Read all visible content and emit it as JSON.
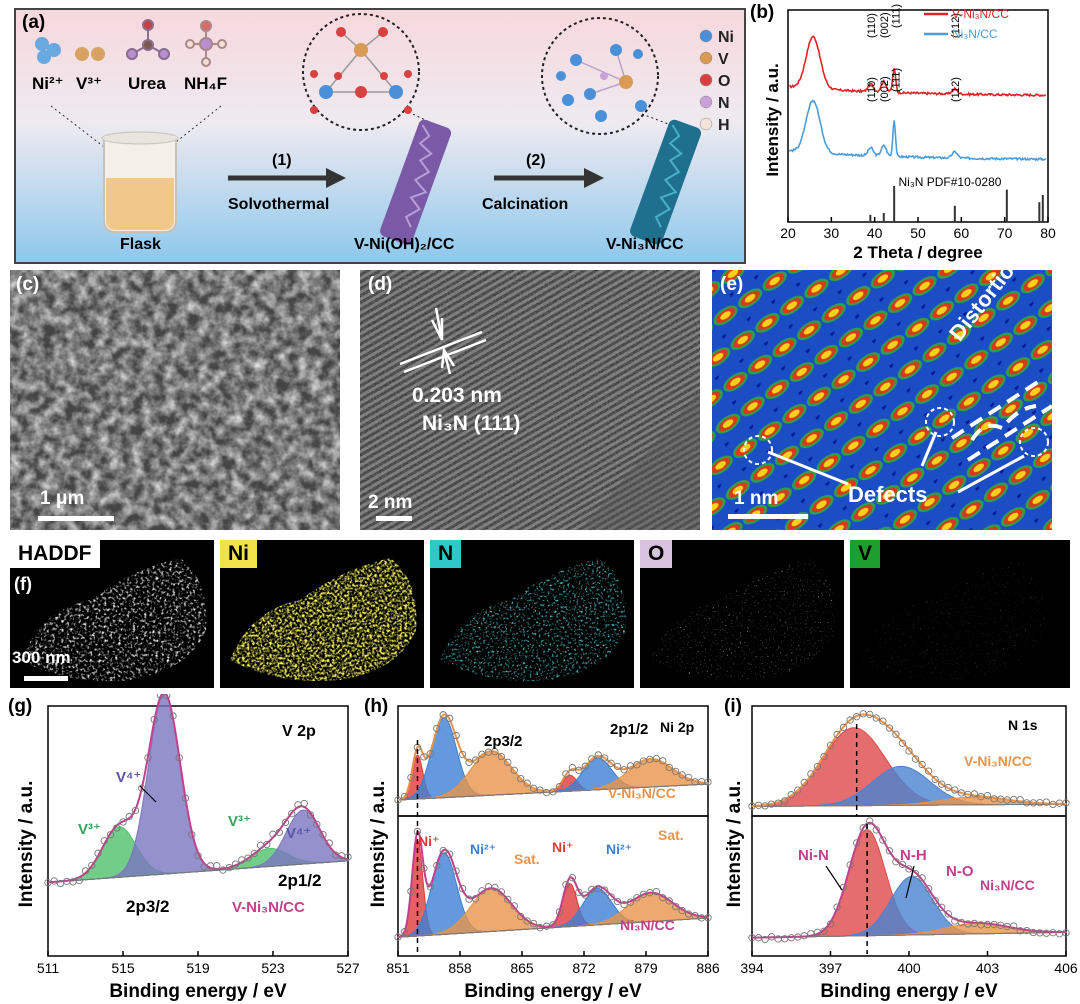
{
  "panel_a": {
    "label": "(a)",
    "reagents": [
      "Ni²⁺",
      "V³⁺",
      "Urea",
      "NH₄F"
    ],
    "flask": "Flask",
    "step1": {
      "num": "(1)",
      "name": "Solvothermal"
    },
    "step2": {
      "num": "(2)",
      "name": "Calcination"
    },
    "product1": "V-Ni(OH)₂/CC",
    "product2": "V-Ni₃N/CC",
    "legend": [
      {
        "el": "Ni",
        "color": "#4a90d9"
      },
      {
        "el": "V",
        "color": "#d99a55"
      },
      {
        "el": "O",
        "color": "#d94040"
      },
      {
        "el": "N",
        "color": "#c9a0d9"
      },
      {
        "el": "H",
        "color": "#f3e2d6"
      }
    ]
  },
  "panel_b": {
    "label": "(b)",
    "legend": [
      "V-Ni₃N/CC",
      "Ni₃N/CC"
    ],
    "peaks": [
      "(110)",
      "(002)",
      "(111)",
      "(112)"
    ],
    "ref": "Ni₃N PDF#10-0280",
    "xlabel": "2 Theta / degree",
    "ylabel": "Intensity / a.u.",
    "xticks": [
      "20",
      "30",
      "40",
      "50",
      "60",
      "70",
      "80"
    ]
  },
  "panel_c": {
    "label": "(c)",
    "scale": "1 μm"
  },
  "panel_d": {
    "label": "(d)",
    "spacing": "0.203 nm",
    "plane": "Ni₃N (111)",
    "scale": "2 nm"
  },
  "panel_e": {
    "label": "(e)",
    "distortion": "Distortion",
    "defects": "Defects",
    "scale": "1 nm"
  },
  "panel_f": {
    "label": "(f)",
    "maps": [
      "HADDF",
      "Ni",
      "N",
      "O",
      "V"
    ],
    "scale": "300 nm"
  },
  "panel_g": {
    "label": "(g)",
    "title": "V 2p",
    "sample": "V-Ni₃N/CC",
    "peaks": [
      "V⁴⁺",
      "V³⁺",
      "V³⁺",
      "V⁴⁺"
    ],
    "orbitals": [
      "2p3/2",
      "2p1/2"
    ],
    "xticks": [
      "511",
      "515",
      "519",
      "523",
      "527"
    ],
    "xlabel": "Binding energy / eV",
    "ylabel": "Intensity / a.u."
  },
  "panel_h": {
    "label": "(h)",
    "title": "Ni 2p",
    "samples": [
      "V-Ni₃N/CC",
      "Ni₃N/CC"
    ],
    "orbitals": [
      "2p3/2",
      "2p1/2"
    ],
    "peaks": [
      "Ni⁺",
      "Ni²⁺",
      "Sat.",
      "Ni⁺",
      "Ni²⁺",
      "Sat."
    ],
    "xticks": [
      "851",
      "858",
      "865",
      "872",
      "879",
      "886"
    ],
    "xlabel": "Binding energy / eV",
    "ylabel": "Intensity / a.u."
  },
  "panel_i": {
    "label": "(i)",
    "title": "N 1s",
    "samples": [
      "V-Ni₃N/CC",
      "Ni₃N/CC"
    ],
    "peaks": [
      "Ni-N",
      "N-H",
      "N-O"
    ],
    "xticks": [
      "394",
      "397",
      "400",
      "403",
      "406"
    ],
    "xlabel": "Binding energy / eV",
    "ylabel": "Intensity / a.u."
  },
  "chart_data": [
    {
      "type": "line",
      "title": "(b)",
      "xlabel": "2 Theta / degree",
      "ylabel": "Intensity / a.u.",
      "xlim": [
        20,
        80
      ],
      "series": [
        {
          "name": "V-Ni₃N/CC",
          "color": "#e02424",
          "peaks": [
            {
              "x": 25.8,
              "height": 1.0,
              "width": 1.6
            },
            {
              "x": 39.1,
              "height": 0.15,
              "width": 0.6
            },
            {
              "x": 42.1,
              "height": 0.2,
              "width": 0.6
            },
            {
              "x": 44.5,
              "height": 0.45,
              "width": 0.35
            },
            {
              "x": 58.5,
              "height": 0.1,
              "width": 0.6
            }
          ]
        },
        {
          "name": "Ni₃N/CC",
          "color": "#4a9ee0",
          "peaks": [
            {
              "x": 25.8,
              "height": 1.0,
              "width": 1.6
            },
            {
              "x": 39.1,
              "height": 0.15,
              "width": 0.6
            },
            {
              "x": 42.1,
              "height": 0.2,
              "width": 0.6
            },
            {
              "x": 44.5,
              "height": 0.7,
              "width": 0.3
            },
            {
              "x": 58.5,
              "height": 0.12,
              "width": 0.6
            }
          ]
        }
      ],
      "reference": {
        "name": "Ni₃N PDF#10-0280",
        "positions": [
          39.0,
          42.1,
          44.5,
          58.5,
          70.5,
          78.0,
          78.8
        ],
        "heights": [
          0.2,
          0.25,
          1.0,
          0.45,
          0.9,
          0.55,
          0.75
        ]
      }
    },
    {
      "type": "area",
      "title": "V 2p",
      "xlabel": "Binding energy / eV",
      "ylabel": "Intensity / a.u.",
      "xlim": [
        511,
        527
      ],
      "components": [
        {
          "label": "V³⁺",
          "center": 514.8,
          "height": 0.28,
          "width": 0.9,
          "color": "#4fc06b"
        },
        {
          "label": "V⁴⁺",
          "center": 517.2,
          "height": 1.0,
          "width": 0.85,
          "color": "#7a75c0"
        },
        {
          "label": "V³⁺",
          "center": 522.8,
          "height": 0.1,
          "width": 1.0,
          "color": "#4fc06b"
        },
        {
          "label": "V⁴⁺",
          "center": 524.6,
          "height": 0.3,
          "width": 0.9,
          "color": "#7a75c0"
        }
      ]
    },
    {
      "type": "area",
      "title": "Ni 2p",
      "xlabel": "Binding energy / eV",
      "ylabel": "Intensity / a.u.",
      "xlim": [
        851,
        886
      ],
      "series": [
        {
          "name": "V-Ni₃N/CC",
          "components": [
            {
              "label": "Ni⁺",
              "center": 853.2,
              "height": 0.55,
              "width": 0.6,
              "color": "#e03a3a"
            },
            {
              "label": "Ni²⁺",
              "center": 856.2,
              "height": 1.0,
              "width": 1.4,
              "color": "#3d7fd4"
            },
            {
              "label": "Sat.",
              "center": 861.5,
              "height": 0.55,
              "width": 2.3,
              "color": "#e8934a"
            },
            {
              "label": "Ni⁺",
              "center": 870.4,
              "height": 0.2,
              "width": 0.8,
              "color": "#e03a3a"
            },
            {
              "label": "Ni²⁺",
              "center": 873.5,
              "height": 0.4,
              "width": 1.6,
              "color": "#3d7fd4"
            },
            {
              "label": "Sat.",
              "center": 879.5,
              "height": 0.35,
              "width": 2.5,
              "color": "#e8934a"
            }
          ]
        },
        {
          "name": "Ni₃N/CC",
          "components": [
            {
              "label": "Ni⁺",
              "center": 853.2,
              "height": 1.0,
              "width": 0.6,
              "color": "#e03a3a"
            },
            {
              "label": "Ni²⁺",
              "center": 856.2,
              "height": 0.85,
              "width": 1.4,
              "color": "#3d7fd4"
            },
            {
              "label": "Sat.",
              "center": 861.5,
              "height": 0.45,
              "width": 2.3,
              "color": "#e8934a"
            },
            {
              "label": "Ni⁺",
              "center": 870.4,
              "height": 0.45,
              "width": 0.8,
              "color": "#e03a3a"
            },
            {
              "label": "Ni²⁺",
              "center": 873.5,
              "height": 0.38,
              "width": 1.6,
              "color": "#3d7fd4"
            },
            {
              "label": "Sat.",
              "center": 879.5,
              "height": 0.3,
              "width": 2.5,
              "color": "#e8934a"
            }
          ]
        }
      ]
    },
    {
      "type": "area",
      "title": "N 1s",
      "xlabel": "Binding energy / eV",
      "ylabel": "Intensity / a.u.",
      "xlim": [
        394,
        406
      ],
      "series": [
        {
          "name": "V-Ni₃N/CC",
          "components": [
            {
              "label": "Ni-N",
              "center": 397.9,
              "height": 1.0,
              "width": 1.2,
              "color": "#e04848"
            },
            {
              "label": "N-H",
              "center": 399.7,
              "height": 0.5,
              "width": 1.1,
              "color": "#4a82d0"
            },
            {
              "label": "N-O",
              "center": 402.5,
              "height": 0.1,
              "width": 1.3,
              "color": "#e8934a"
            }
          ]
        },
        {
          "name": "Ni₃N/CC",
          "components": [
            {
              "label": "Ni-N",
              "center": 398.4,
              "height": 1.0,
              "width": 0.7,
              "color": "#e04848"
            },
            {
              "label": "N-H",
              "center": 400.1,
              "height": 0.55,
              "width": 0.8,
              "color": "#4a82d0"
            },
            {
              "label": "N-O",
              "center": 402.6,
              "height": 0.1,
              "width": 1.2,
              "color": "#e8934a"
            }
          ]
        }
      ]
    }
  ]
}
